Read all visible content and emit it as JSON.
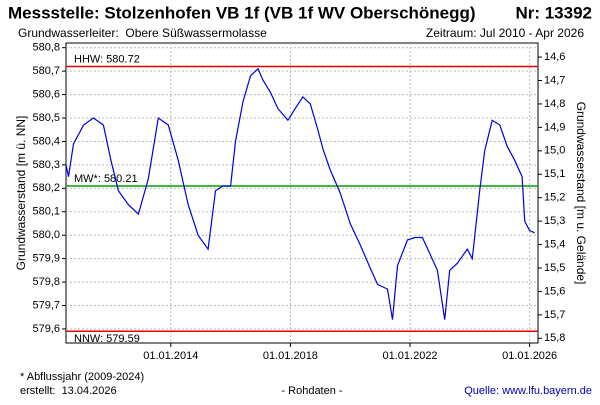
{
  "chart_data": {
    "type": "line",
    "title": "Messstelle: Stolzenhofen VB 1f (VB 1f WV Oberschönegg)",
    "number": "Nr: 13392",
    "subtitle_left": "Grundwasserleiter:  Obere Süßwassermolasse",
    "subtitle_right": "Zeitraum: Jul 2010 - Apr 2026",
    "ylabel": "Grundwasserstand [m ü. NN]",
    "y2label": "Grundwasserstand [m u. Gelände]",
    "color": "#0000e0",
    "grid": true,
    "x": [
      "2010-07-01",
      "2010-08-01",
      "2010-10-01",
      "2011-02-01",
      "2011-06-01",
      "2011-10-01",
      "2012-01-01",
      "2012-04-01",
      "2012-08-01",
      "2012-12-01",
      "2013-04-01",
      "2013-08-01",
      "2013-12-01",
      "2014-04-01",
      "2014-08-01",
      "2014-12-01",
      "2015-04-01",
      "2015-07-01",
      "2015-10-01",
      "2016-01-01",
      "2016-03-01",
      "2016-06-01",
      "2016-09-01",
      "2016-12-01",
      "2017-02-01",
      "2017-05-01",
      "2017-08-01",
      "2017-12-01",
      "2018-03-01",
      "2018-06-01",
      "2018-09-01",
      "2018-12-01",
      "2019-02-01",
      "2019-05-01",
      "2019-09-01",
      "2020-01-01",
      "2020-05-01",
      "2020-09-01",
      "2020-12-01",
      "2021-04-01",
      "2021-06-01",
      "2021-08-01",
      "2021-12-01",
      "2022-03-01",
      "2022-06-01",
      "2022-09-01",
      "2022-12-01",
      "2023-03-01",
      "2023-05-01",
      "2023-08-01",
      "2023-12-01",
      "2024-02-01",
      "2024-05-01",
      "2024-07-01",
      "2024-10-01",
      "2025-01-01",
      "2025-04-01",
      "2025-07-01",
      "2025-10-01",
      "2025-11-01",
      "2026-01-01",
      "2026-03-01"
    ],
    "values": [
      580.3,
      580.25,
      580.39,
      580.47,
      580.5,
      580.47,
      580.32,
      580.19,
      580.13,
      580.09,
      580.24,
      580.5,
      580.47,
      580.32,
      580.13,
      580.0,
      579.94,
      580.19,
      580.21,
      580.21,
      580.4,
      580.57,
      580.68,
      580.71,
      580.66,
      580.61,
      580.54,
      580.49,
      580.54,
      580.59,
      580.56,
      580.45,
      580.37,
      580.28,
      580.18,
      580.05,
      579.96,
      579.86,
      579.79,
      579.77,
      579.64,
      579.87,
      579.98,
      579.99,
      579.99,
      579.92,
      579.85,
      579.64,
      579.85,
      579.88,
      579.94,
      579.9,
      580.19,
      580.36,
      580.49,
      580.47,
      580.38,
      580.32,
      580.25,
      580.06,
      580.02,
      580.01
    ],
    "xlim": [
      "2010-07-01",
      "2026-04-13"
    ],
    "xticks": [
      {
        "value": "2014-01-01",
        "label": "01.01.2014"
      },
      {
        "value": "2018-01-01",
        "label": "01.01.2018"
      },
      {
        "value": "2022-01-01",
        "label": "01.01.2022"
      },
      {
        "value": "2026-01-01",
        "label": "01.01.2026"
      }
    ],
    "ylim": [
      579.54,
      580.82
    ],
    "yticks": [
      {
        "value": 579.6,
        "label": "579,6"
      },
      {
        "value": 579.7,
        "label": "579,7"
      },
      {
        "value": 579.8,
        "label": "579,8"
      },
      {
        "value": 579.9,
        "label": "579,9"
      },
      {
        "value": 580.0,
        "label": "580,0"
      },
      {
        "value": 580.1,
        "label": "580,1"
      },
      {
        "value": 580.2,
        "label": "580,2"
      },
      {
        "value": 580.3,
        "label": "580,3"
      },
      {
        "value": 580.4,
        "label": "580,4"
      },
      {
        "value": 580.5,
        "label": "580,5"
      },
      {
        "value": 580.6,
        "label": "580,6"
      },
      {
        "value": 580.7,
        "label": "580,7"
      },
      {
        "value": 580.8,
        "label": "580,8"
      }
    ],
    "y2lim": [
      15.82,
      14.54
    ],
    "y2ticks": [
      {
        "value": 14.6,
        "label": "14,6"
      },
      {
        "value": 14.7,
        "label": "14,7"
      },
      {
        "value": 14.8,
        "label": "14,8"
      },
      {
        "value": 14.9,
        "label": "14,9"
      },
      {
        "value": 15.0,
        "label": "15,0"
      },
      {
        "value": 15.1,
        "label": "15,1"
      },
      {
        "value": 15.2,
        "label": "15,2"
      },
      {
        "value": 15.3,
        "label": "15,3"
      },
      {
        "value": 15.4,
        "label": "15,4"
      },
      {
        "value": 15.5,
        "label": "15,5"
      },
      {
        "value": 15.6,
        "label": "15,6"
      },
      {
        "value": 15.7,
        "label": "15,7"
      },
      {
        "value": 15.8,
        "label": "15,8"
      }
    ],
    "reference_lines": [
      {
        "label": "HHW: 580.72",
        "value": 580.72,
        "color": "#e00000"
      },
      {
        "label": "MW*: 580.21",
        "value": 580.21,
        "color": "#00a000"
      },
      {
        "label": "NNW: 579.59",
        "value": 579.59,
        "color": "#e00000"
      }
    ],
    "footnote": "* Abflussjahr (2009-2024)",
    "created": "erstellt:  13.04.2026",
    "raw_note": "- Rohdaten -",
    "source": "Quelle: www.lfu.bayern.de"
  }
}
